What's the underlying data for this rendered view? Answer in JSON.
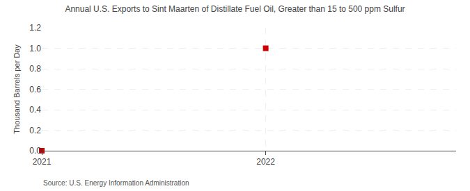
{
  "chart_data": {
    "type": "scatter",
    "title": "Annual U.S. Exports to Sint Maarten of Distillate Fuel Oil, Greater than 15 to 500 ppm Sulfur",
    "ylabel": "Thousand Barrels per Day",
    "annotations": [
      "Source: U.S. Energy Information Administration"
    ],
    "x": [
      2021,
      2022
    ],
    "values": [
      0.0,
      1.0
    ],
    "color": "#cc0000",
    "marker": "square",
    "xlim": [
      2021.0,
      2022.85
    ],
    "xticks": [
      2021,
      2022
    ],
    "ylim": [
      0.0,
      1.2
    ],
    "yticks": [
      {
        "value": 0.0,
        "label": "0.0"
      },
      0.2,
      0.4,
      0.6,
      0.8,
      {
        "value": 1.0,
        "label": "1.0"
      },
      1.2
    ],
    "grid": true
  }
}
